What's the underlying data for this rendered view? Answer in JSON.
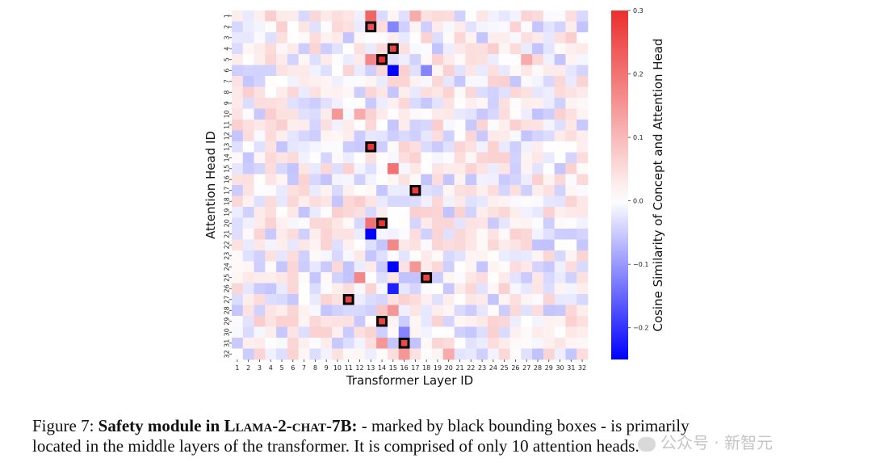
{
  "chart_data": {
    "type": "heatmap",
    "xlabel": "Transformer Layer ID",
    "ylabel": "Attention Head ID",
    "x_ticks": [
      "1",
      "2",
      "3",
      "4",
      "5",
      "6",
      "7",
      "8",
      "9",
      "10",
      "11",
      "12",
      "13",
      "14",
      "15",
      "16",
      "17",
      "18",
      "19",
      "20",
      "21",
      "22",
      "23",
      "24",
      "25",
      "26",
      "27",
      "28",
      "29",
      "30",
      "31",
      "32"
    ],
    "y_ticks": [
      "1",
      "2",
      "3",
      "4",
      "5",
      "6",
      "7",
      "8",
      "9",
      "10",
      "11",
      "12",
      "13",
      "14",
      "15",
      "16",
      "17",
      "18",
      "19",
      "20",
      "21",
      "22",
      "23",
      "24",
      "25",
      "26",
      "27",
      "28",
      "29",
      "30",
      "31",
      "32"
    ],
    "colorbar": {
      "label": "Cosine Similarity of Concept and Attention Head",
      "min": -0.25,
      "max": 0.3,
      "ticks": [
        "0.3",
        "0.2",
        "0.1",
        "0.0",
        "−0.1",
        "−0.2"
      ],
      "tick_values": [
        0.3,
        0.2,
        0.1,
        0.0,
        -0.1,
        -0.2
      ],
      "colormap": "bwr",
      "low_color": "#0000ff",
      "mid_color": "#ffffff",
      "high_color": "#ff0000"
    },
    "notable_cells": [
      {
        "layer": 13,
        "head": 1,
        "value": 0.22
      },
      {
        "layer": 17,
        "head": 1,
        "value": 0.12
      },
      {
        "layer": 15,
        "head": 2,
        "value": -0.12
      },
      {
        "layer": 13,
        "head": 5,
        "value": 0.17
      },
      {
        "layer": 15,
        "head": 6,
        "value": -0.28
      },
      {
        "layer": 18,
        "head": 6,
        "value": -0.12
      },
      {
        "layer": 27,
        "head": 5,
        "value": 0.12
      },
      {
        "layer": 10,
        "head": 10,
        "value": 0.15
      },
      {
        "layer": 12,
        "head": 10,
        "value": 0.12
      },
      {
        "layer": 15,
        "head": 15,
        "value": 0.2
      },
      {
        "layer": 13,
        "head": 20,
        "value": 0.2
      },
      {
        "layer": 13,
        "head": 21,
        "value": -0.25
      },
      {
        "layer": 15,
        "head": 22,
        "value": 0.17
      },
      {
        "layer": 15,
        "head": 24,
        "value": -0.25
      },
      {
        "layer": 17,
        "head": 24,
        "value": 0.15
      },
      {
        "layer": 12,
        "head": 25,
        "value": 0.17
      },
      {
        "layer": 15,
        "head": 26,
        "value": -0.22
      },
      {
        "layer": 15,
        "head": 28,
        "value": 0.15
      },
      {
        "layer": 14,
        "head": 28,
        "value": 0.08
      },
      {
        "layer": 16,
        "head": 30,
        "value": -0.12
      },
      {
        "layer": 14,
        "head": 31,
        "value": 0.15
      },
      {
        "layer": 16,
        "head": 32,
        "value": 0.15
      },
      {
        "layer": 20,
        "head": 32,
        "value": 0.12
      }
    ],
    "highlighted_cells": [
      {
        "layer": 13,
        "head": 2,
        "value": 0.25
      },
      {
        "layer": 15,
        "head": 4,
        "value": 0.27
      },
      {
        "layer": 14,
        "head": 5,
        "value": 0.3
      },
      {
        "layer": 13,
        "head": 13,
        "value": 0.29
      },
      {
        "layer": 17,
        "head": 17,
        "value": 0.28
      },
      {
        "layer": 14,
        "head": 20,
        "value": 0.29
      },
      {
        "layer": 18,
        "head": 25,
        "value": 0.27
      },
      {
        "layer": 11,
        "head": 27,
        "value": 0.27
      },
      {
        "layer": 14,
        "head": 29,
        "value": 0.27
      },
      {
        "layer": 16,
        "head": 31,
        "value": 0.26
      }
    ],
    "highlight_box_color": "#000000",
    "background_noise_range": [
      -0.06,
      0.07
    ]
  },
  "caption": {
    "figure_label": "Figure 7:",
    "bold_prefix": "Safety module in ",
    "model_name_sc": "Llama-2-chat-7B:",
    "text_line1_rest": " - marked by black bounding boxes - is primarily",
    "text_line2": "located in the middle layers of the transformer. It is comprised of only 10 attention heads."
  },
  "watermark": {
    "text": "公众号 · 新智元"
  }
}
